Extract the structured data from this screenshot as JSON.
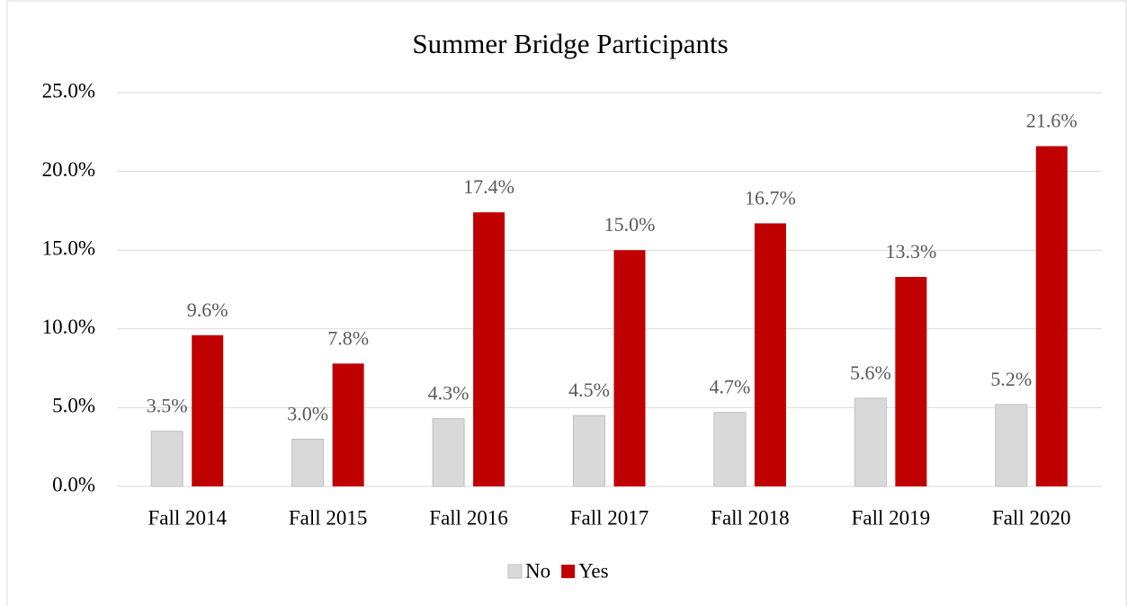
{
  "chart_data": {
    "type": "bar",
    "title": "Summer Bridge Participants",
    "categories": [
      "Fall 2014",
      "Fall 2015",
      "Fall 2016",
      "Fall 2017",
      "Fall 2018",
      "Fall 2019",
      "Fall 2020"
    ],
    "series": [
      {
        "name": "No",
        "color": "#d9d9d9",
        "values": [
          3.5,
          3.0,
          4.3,
          4.5,
          4.7,
          5.6,
          5.2
        ],
        "value_labels": [
          "3.5%",
          "3.0%",
          "4.3%",
          "4.5%",
          "4.7%",
          "5.6%",
          "5.2%"
        ]
      },
      {
        "name": "Yes",
        "color": "#c00000",
        "values": [
          9.6,
          7.8,
          17.4,
          15.0,
          16.7,
          13.3,
          21.6
        ],
        "value_labels": [
          "9.6%",
          "7.8%",
          "17.4%",
          "15.0%",
          "16.7%",
          "13.3%",
          "21.6%"
        ]
      }
    ],
    "ylim": [
      0,
      25
    ],
    "yticks": [
      {
        "value": 0,
        "label": "0.0%"
      },
      {
        "value": 5,
        "label": "5.0%"
      },
      {
        "value": 10,
        "label": "10.0%"
      },
      {
        "value": 15,
        "label": "15.0%"
      },
      {
        "value": 20,
        "label": "20.0%"
      },
      {
        "value": 25,
        "label": "25.0%"
      }
    ],
    "grid": true,
    "legend": "bottom"
  }
}
